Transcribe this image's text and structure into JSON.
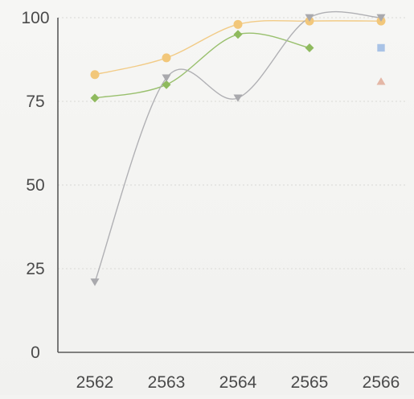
{
  "chart_data": {
    "type": "line",
    "title": "",
    "xlabel": "",
    "ylabel": "",
    "categories": [
      "2562",
      "2563",
      "2564",
      "2565",
      "2566"
    ],
    "ylim": [
      0,
      100
    ],
    "yticks": [
      0,
      25,
      50,
      75,
      100
    ],
    "grid": true,
    "smooth": true,
    "series": [
      {
        "color": "#f2c77a",
        "marker": "circle",
        "values": [
          83,
          88,
          98,
          99,
          99
        ]
      },
      {
        "color": "#8fba5e",
        "marker": "diamond",
        "values": [
          76,
          80,
          95,
          91,
          null
        ]
      },
      {
        "color": "#a9a9ad",
        "marker": "triangle-down",
        "values": [
          21,
          82,
          76,
          100,
          100
        ]
      },
      {
        "color": "#a9c3e6",
        "marker": "square",
        "values": [
          null,
          null,
          null,
          null,
          91
        ]
      },
      {
        "color": "#e4b7a6",
        "marker": "triangle-up",
        "values": [
          null,
          null,
          null,
          null,
          81
        ]
      }
    ]
  }
}
